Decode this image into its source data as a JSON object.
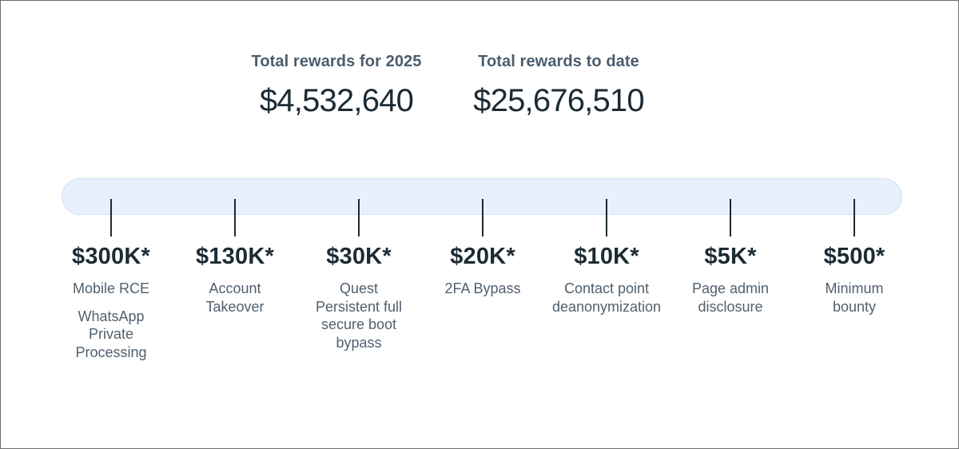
{
  "summary": {
    "stats": [
      {
        "label": "Total rewards for 2025",
        "value": "$4,532,640"
      },
      {
        "label": "Total rewards to date",
        "value": "$25,676,510"
      }
    ]
  },
  "timeline": {
    "tiers": [
      {
        "amount": "$300K*",
        "descriptions": [
          "Mobile RCE",
          "WhatsApp Private Processing"
        ]
      },
      {
        "amount": "$130K*",
        "descriptions": [
          "Account Takeover"
        ]
      },
      {
        "amount": "$30K*",
        "descriptions": [
          "Quest Persistent full secure boot bypass"
        ]
      },
      {
        "amount": "$20K*",
        "descriptions": [
          "2FA Bypass"
        ]
      },
      {
        "amount": "$10K*",
        "descriptions": [
          "Contact point deanonymization"
        ]
      },
      {
        "amount": "$5K*",
        "descriptions": [
          "Page admin disclosure"
        ]
      },
      {
        "amount": "$500*",
        "descriptions": [
          "Minimum bounty"
        ]
      }
    ]
  },
  "colors": {
    "background": "#ffffff",
    "page_border": "#6f6f6f",
    "bar_fill": "#e7f0fc",
    "tick": "#1c2b33",
    "stat_label_text": "#4b5c6e",
    "stat_value_text": "#1c2b33",
    "amount_text": "#1c2b33",
    "description_text": "#51606e"
  }
}
